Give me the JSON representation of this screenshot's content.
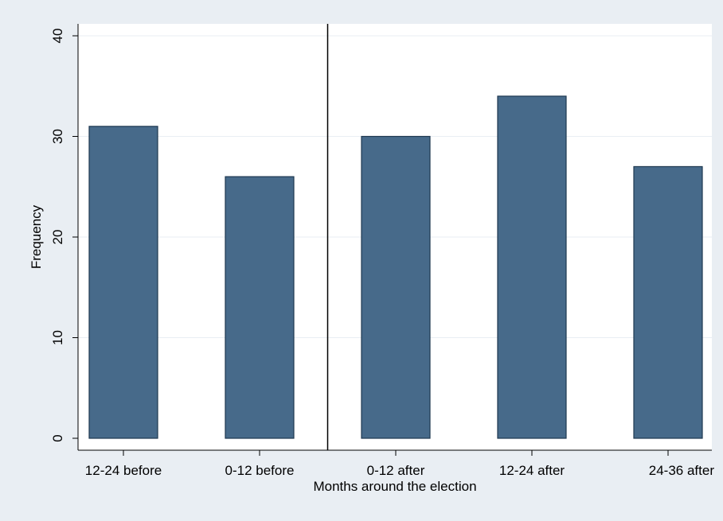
{
  "chart_data": {
    "type": "bar",
    "categories": [
      "12-24 before",
      "0-12 before",
      "0-12 after",
      "12-24 after",
      "24-36 after"
    ],
    "values": [
      31,
      26,
      30,
      34,
      27
    ],
    "title": "",
    "xlabel": "Months around the election",
    "ylabel": "Frequency",
    "ylim": [
      0,
      40
    ],
    "yticks": [
      0,
      10,
      20,
      30,
      40
    ],
    "grid": true,
    "reference_line_between": [
      "0-12 before",
      "0-12 after"
    ],
    "colors": {
      "bar_fill": "#476a8a",
      "bar_stroke": "#1e3850",
      "outer_background": "#e9eef3",
      "plot_background": "#ffffff",
      "grid": "#e9eef3"
    }
  }
}
